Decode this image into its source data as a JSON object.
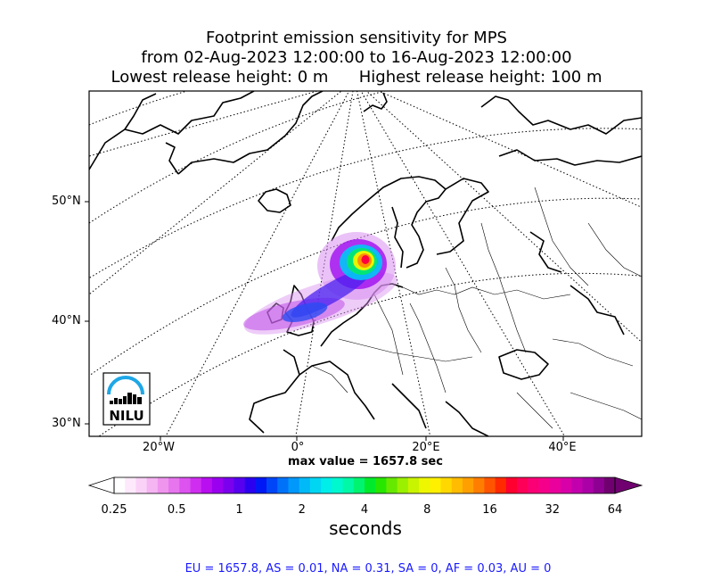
{
  "title": {
    "line1": "Footprint emission sensitivity for MPS",
    "line2": "from 02-Aug-2023 12:00:00 to 16-Aug-2023 12:00:00",
    "line3": "Lowest release height: 0 m      Highest release height: 100 m"
  },
  "axes": {
    "lat_labels": [
      "50°N",
      "40°N",
      "30°N"
    ],
    "lon_labels": [
      "20°W",
      "0°",
      "20°E",
      "40°E"
    ]
  },
  "logo": {
    "text": "NILU",
    "accent_color": "#1ea7e6"
  },
  "max_value_text": "max value = 1657.8 sec",
  "colorbar": {
    "ticks": [
      "0.25",
      "0.5",
      "1",
      "2",
      "4",
      "8",
      "16",
      "32",
      "64"
    ],
    "unit": "seconds",
    "colors": [
      "#ffffff",
      "#fde9fb",
      "#fad1f7",
      "#f5b4f2",
      "#ef95ee",
      "#e775ee",
      "#dc53ef",
      "#cf2ef0",
      "#b80ef0",
      "#9a00ef",
      "#7a00ee",
      "#5600ef",
      "#2b00f0",
      "#0018f6",
      "#0046f8",
      "#0072f9",
      "#0098fa",
      "#00baf8",
      "#00d6f2",
      "#00eeea",
      "#00f8cf",
      "#00f8a6",
      "#00f46f",
      "#00ea2c",
      "#27e700",
      "#66e900",
      "#9bf000",
      "#c9f400",
      "#eef700",
      "#fff000",
      "#ffd800",
      "#ffbc00",
      "#ff9f00",
      "#ff7e00",
      "#ff5500",
      "#ff2a00",
      "#ff0030",
      "#ff0058",
      "#fb0075",
      "#f5008a",
      "#ea009c",
      "#d800a8",
      "#c300ad",
      "#ab00a8",
      "#8e0092",
      "#700070"
    ]
  },
  "footer": "EU = 1657.8,  AS = 0.01,  NA = 0.31,  SA = 0,  AF = 0.03,  AU = 0"
}
